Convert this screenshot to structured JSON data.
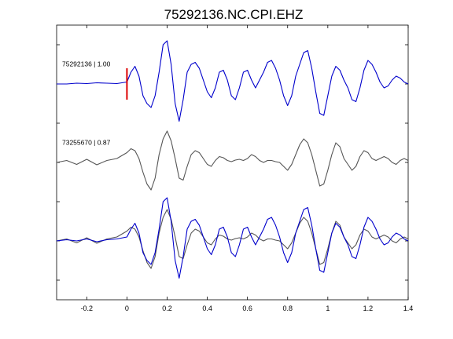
{
  "chart_data": {
    "type": "line",
    "title": "75292136.NC.CPI.EHZ",
    "xlabel": "",
    "ylabel": "",
    "xlim": [
      -0.35,
      1.4
    ],
    "x_ticks": [
      -0.2,
      0,
      0.2,
      0.4,
      0.6,
      0.8,
      1,
      1.2,
      1.4
    ],
    "x_tick_labels": [
      "-0.2",
      "0",
      "0.2",
      "0.4",
      "0.6",
      "0.8",
      "1",
      "1.2",
      "1.4"
    ],
    "grid": false,
    "legend": "none",
    "pick_marker": {
      "x": 0,
      "color": "#dd0000"
    },
    "traces": [
      {
        "label": "75292136 | 1.00",
        "color": "#0000cc",
        "baseline_offset": 2,
        "x": [
          -0.35,
          -0.3,
          -0.25,
          -0.2,
          -0.15,
          -0.1,
          -0.05,
          0,
          0.02,
          0.04,
          0.06,
          0.08,
          0.1,
          0.12,
          0.14,
          0.16,
          0.18,
          0.2,
          0.22,
          0.24,
          0.26,
          0.28,
          0.3,
          0.32,
          0.34,
          0.36,
          0.38,
          0.4,
          0.42,
          0.44,
          0.46,
          0.48,
          0.5,
          0.52,
          0.54,
          0.56,
          0.58,
          0.6,
          0.62,
          0.64,
          0.66,
          0.68,
          0.7,
          0.72,
          0.74,
          0.76,
          0.78,
          0.8,
          0.82,
          0.84,
          0.86,
          0.88,
          0.9,
          0.92,
          0.94,
          0.96,
          0.98,
          1,
          1.02,
          1.04,
          1.06,
          1.08,
          1.1,
          1.12,
          1.14,
          1.16,
          1.18,
          1.2,
          1.22,
          1.24,
          1.26,
          1.28,
          1.3,
          1.32,
          1.34,
          1.36,
          1.38,
          1.4
        ],
        "y": [
          0,
          0,
          0.02,
          0.01,
          0.03,
          0.02,
          0.01,
          0.05,
          0.3,
          0.45,
          0.2,
          -0.3,
          -0.5,
          -0.6,
          -0.3,
          0.3,
          1.0,
          1.1,
          0.5,
          -0.5,
          -0.95,
          -0.4,
          0.3,
          0.5,
          0.55,
          0.4,
          0.1,
          -0.2,
          -0.35,
          -0.1,
          0.3,
          0.35,
          0.1,
          -0.3,
          -0.4,
          -0.1,
          0.3,
          0.35,
          0.1,
          -0.1,
          0.1,
          0.3,
          0.55,
          0.6,
          0.4,
          0.1,
          -0.3,
          -0.55,
          -0.3,
          0.2,
          0.5,
          0.8,
          0.85,
          0.4,
          -0.2,
          -0.75,
          -0.8,
          -0.3,
          0.2,
          0.45,
          0.35,
          0.1,
          -0.1,
          -0.4,
          -0.45,
          -0.1,
          0.35,
          0.6,
          0.5,
          0.3,
          0.05,
          -0.1,
          -0.05,
          0.1,
          0.2,
          0.15,
          0.05,
          0
        ]
      },
      {
        "label": "73255670 | 0.87",
        "color": "#555555",
        "baseline_offset": 0,
        "x": [
          -0.35,
          -0.3,
          -0.25,
          -0.2,
          -0.15,
          -0.1,
          -0.05,
          0,
          0.02,
          0.04,
          0.06,
          0.08,
          0.1,
          0.12,
          0.14,
          0.16,
          0.18,
          0.2,
          0.22,
          0.24,
          0.26,
          0.28,
          0.3,
          0.32,
          0.34,
          0.36,
          0.38,
          0.4,
          0.42,
          0.44,
          0.46,
          0.48,
          0.5,
          0.52,
          0.54,
          0.56,
          0.58,
          0.6,
          0.62,
          0.64,
          0.66,
          0.68,
          0.7,
          0.72,
          0.74,
          0.76,
          0.78,
          0.8,
          0.82,
          0.84,
          0.86,
          0.88,
          0.9,
          0.92,
          0.94,
          0.96,
          0.98,
          1,
          1.02,
          1.04,
          1.06,
          1.08,
          1.1,
          1.12,
          1.14,
          1.16,
          1.18,
          1.2,
          1.22,
          1.24,
          1.26,
          1.28,
          1.3,
          1.32,
          1.34,
          1.36,
          1.38,
          1.4
        ],
        "y": [
          0,
          0.05,
          -0.05,
          0.08,
          -0.06,
          0.05,
          0.1,
          0.25,
          0.35,
          0.3,
          0.1,
          -0.25,
          -0.55,
          -0.7,
          -0.4,
          0.2,
          0.6,
          0.8,
          0.55,
          0.1,
          -0.4,
          -0.45,
          -0.1,
          0.2,
          0.3,
          0.25,
          0.1,
          -0.05,
          -0.1,
          0.05,
          0.15,
          0.12,
          0.05,
          0.02,
          0.06,
          0.08,
          0.05,
          0.1,
          0.2,
          0.15,
          0.05,
          0,
          0.05,
          0.05,
          0.02,
          0.0,
          -0.1,
          -0.2,
          -0.05,
          0.2,
          0.45,
          0.6,
          0.5,
          0.2,
          -0.2,
          -0.6,
          -0.55,
          -0.2,
          0.2,
          0.5,
          0.4,
          0.1,
          -0.05,
          -0.2,
          -0.1,
          0.15,
          0.3,
          0.25,
          0.1,
          0.05,
          0.1,
          0.15,
          0.1,
          0.0,
          -0.05,
          0.05,
          0.1,
          0.05
        ]
      },
      {
        "label": "",
        "color": "#555555",
        "baseline_offset": -2,
        "x": [
          -0.35,
          -0.3,
          -0.25,
          -0.2,
          -0.15,
          -0.1,
          -0.05,
          0,
          0.02,
          0.04,
          0.06,
          0.08,
          0.1,
          0.12,
          0.14,
          0.16,
          0.18,
          0.2,
          0.22,
          0.24,
          0.26,
          0.28,
          0.3,
          0.32,
          0.34,
          0.36,
          0.38,
          0.4,
          0.42,
          0.44,
          0.46,
          0.48,
          0.5,
          0.52,
          0.54,
          0.56,
          0.58,
          0.6,
          0.62,
          0.64,
          0.66,
          0.68,
          0.7,
          0.72,
          0.74,
          0.76,
          0.78,
          0.8,
          0.82,
          0.84,
          0.86,
          0.88,
          0.9,
          0.92,
          0.94,
          0.96,
          0.98,
          1,
          1.02,
          1.04,
          1.06,
          1.08,
          1.1,
          1.12,
          1.14,
          1.16,
          1.18,
          1.2,
          1.22,
          1.24,
          1.26,
          1.28,
          1.3,
          1.32,
          1.34,
          1.36,
          1.38,
          1.4
        ],
        "y": [
          0,
          0.05,
          -0.05,
          0.08,
          -0.06,
          0.05,
          0.1,
          0.25,
          0.35,
          0.3,
          0.1,
          -0.25,
          -0.55,
          -0.7,
          -0.4,
          0.2,
          0.6,
          0.8,
          0.55,
          0.1,
          -0.4,
          -0.45,
          -0.1,
          0.2,
          0.3,
          0.25,
          0.1,
          -0.05,
          -0.1,
          0.05,
          0.15,
          0.12,
          0.05,
          0.02,
          0.06,
          0.08,
          0.05,
          0.1,
          0.2,
          0.15,
          0.05,
          0,
          0.05,
          0.05,
          0.02,
          0.0,
          -0.1,
          -0.2,
          -0.05,
          0.2,
          0.45,
          0.6,
          0.5,
          0.2,
          -0.2,
          -0.6,
          -0.55,
          -0.2,
          0.2,
          0.5,
          0.4,
          0.1,
          -0.05,
          -0.2,
          -0.1,
          0.15,
          0.3,
          0.25,
          0.1,
          0.05,
          0.1,
          0.15,
          0.1,
          0.0,
          -0.05,
          0.05,
          0.1,
          0.05
        ]
      },
      {
        "label": "",
        "color": "#0000cc",
        "baseline_offset": -2,
        "x": [
          -0.35,
          -0.3,
          -0.25,
          -0.2,
          -0.15,
          -0.1,
          -0.05,
          0,
          0.02,
          0.04,
          0.06,
          0.08,
          0.1,
          0.12,
          0.14,
          0.16,
          0.18,
          0.2,
          0.22,
          0.24,
          0.26,
          0.28,
          0.3,
          0.32,
          0.34,
          0.36,
          0.38,
          0.4,
          0.42,
          0.44,
          0.46,
          0.48,
          0.5,
          0.52,
          0.54,
          0.56,
          0.58,
          0.6,
          0.62,
          0.64,
          0.66,
          0.68,
          0.7,
          0.72,
          0.74,
          0.76,
          0.78,
          0.8,
          0.82,
          0.84,
          0.86,
          0.88,
          0.9,
          0.92,
          0.94,
          0.96,
          0.98,
          1,
          1.02,
          1.04,
          1.06,
          1.08,
          1.1,
          1.12,
          1.14,
          1.16,
          1.18,
          1.2,
          1.22,
          1.24,
          1.26,
          1.28,
          1.3,
          1.32,
          1.34,
          1.36,
          1.38,
          1.4
        ],
        "y": [
          0,
          0.03,
          0.0,
          0.05,
          -0.02,
          0.03,
          0.05,
          0.1,
          0.3,
          0.45,
          0.2,
          -0.3,
          -0.5,
          -0.6,
          -0.3,
          0.3,
          1.0,
          1.1,
          0.5,
          -0.5,
          -0.95,
          -0.4,
          0.3,
          0.5,
          0.55,
          0.4,
          0.1,
          -0.2,
          -0.35,
          -0.1,
          0.3,
          0.35,
          0.1,
          -0.3,
          -0.4,
          -0.1,
          0.3,
          0.35,
          0.1,
          -0.1,
          0.1,
          0.3,
          0.55,
          0.6,
          0.4,
          0.1,
          -0.3,
          -0.55,
          -0.3,
          0.2,
          0.5,
          0.8,
          0.85,
          0.4,
          -0.2,
          -0.75,
          -0.8,
          -0.3,
          0.2,
          0.45,
          0.35,
          0.1,
          -0.1,
          -0.4,
          -0.45,
          -0.1,
          0.35,
          0.6,
          0.5,
          0.3,
          0.05,
          -0.1,
          -0.05,
          0.1,
          0.2,
          0.15,
          0.05,
          0
        ]
      }
    ]
  }
}
